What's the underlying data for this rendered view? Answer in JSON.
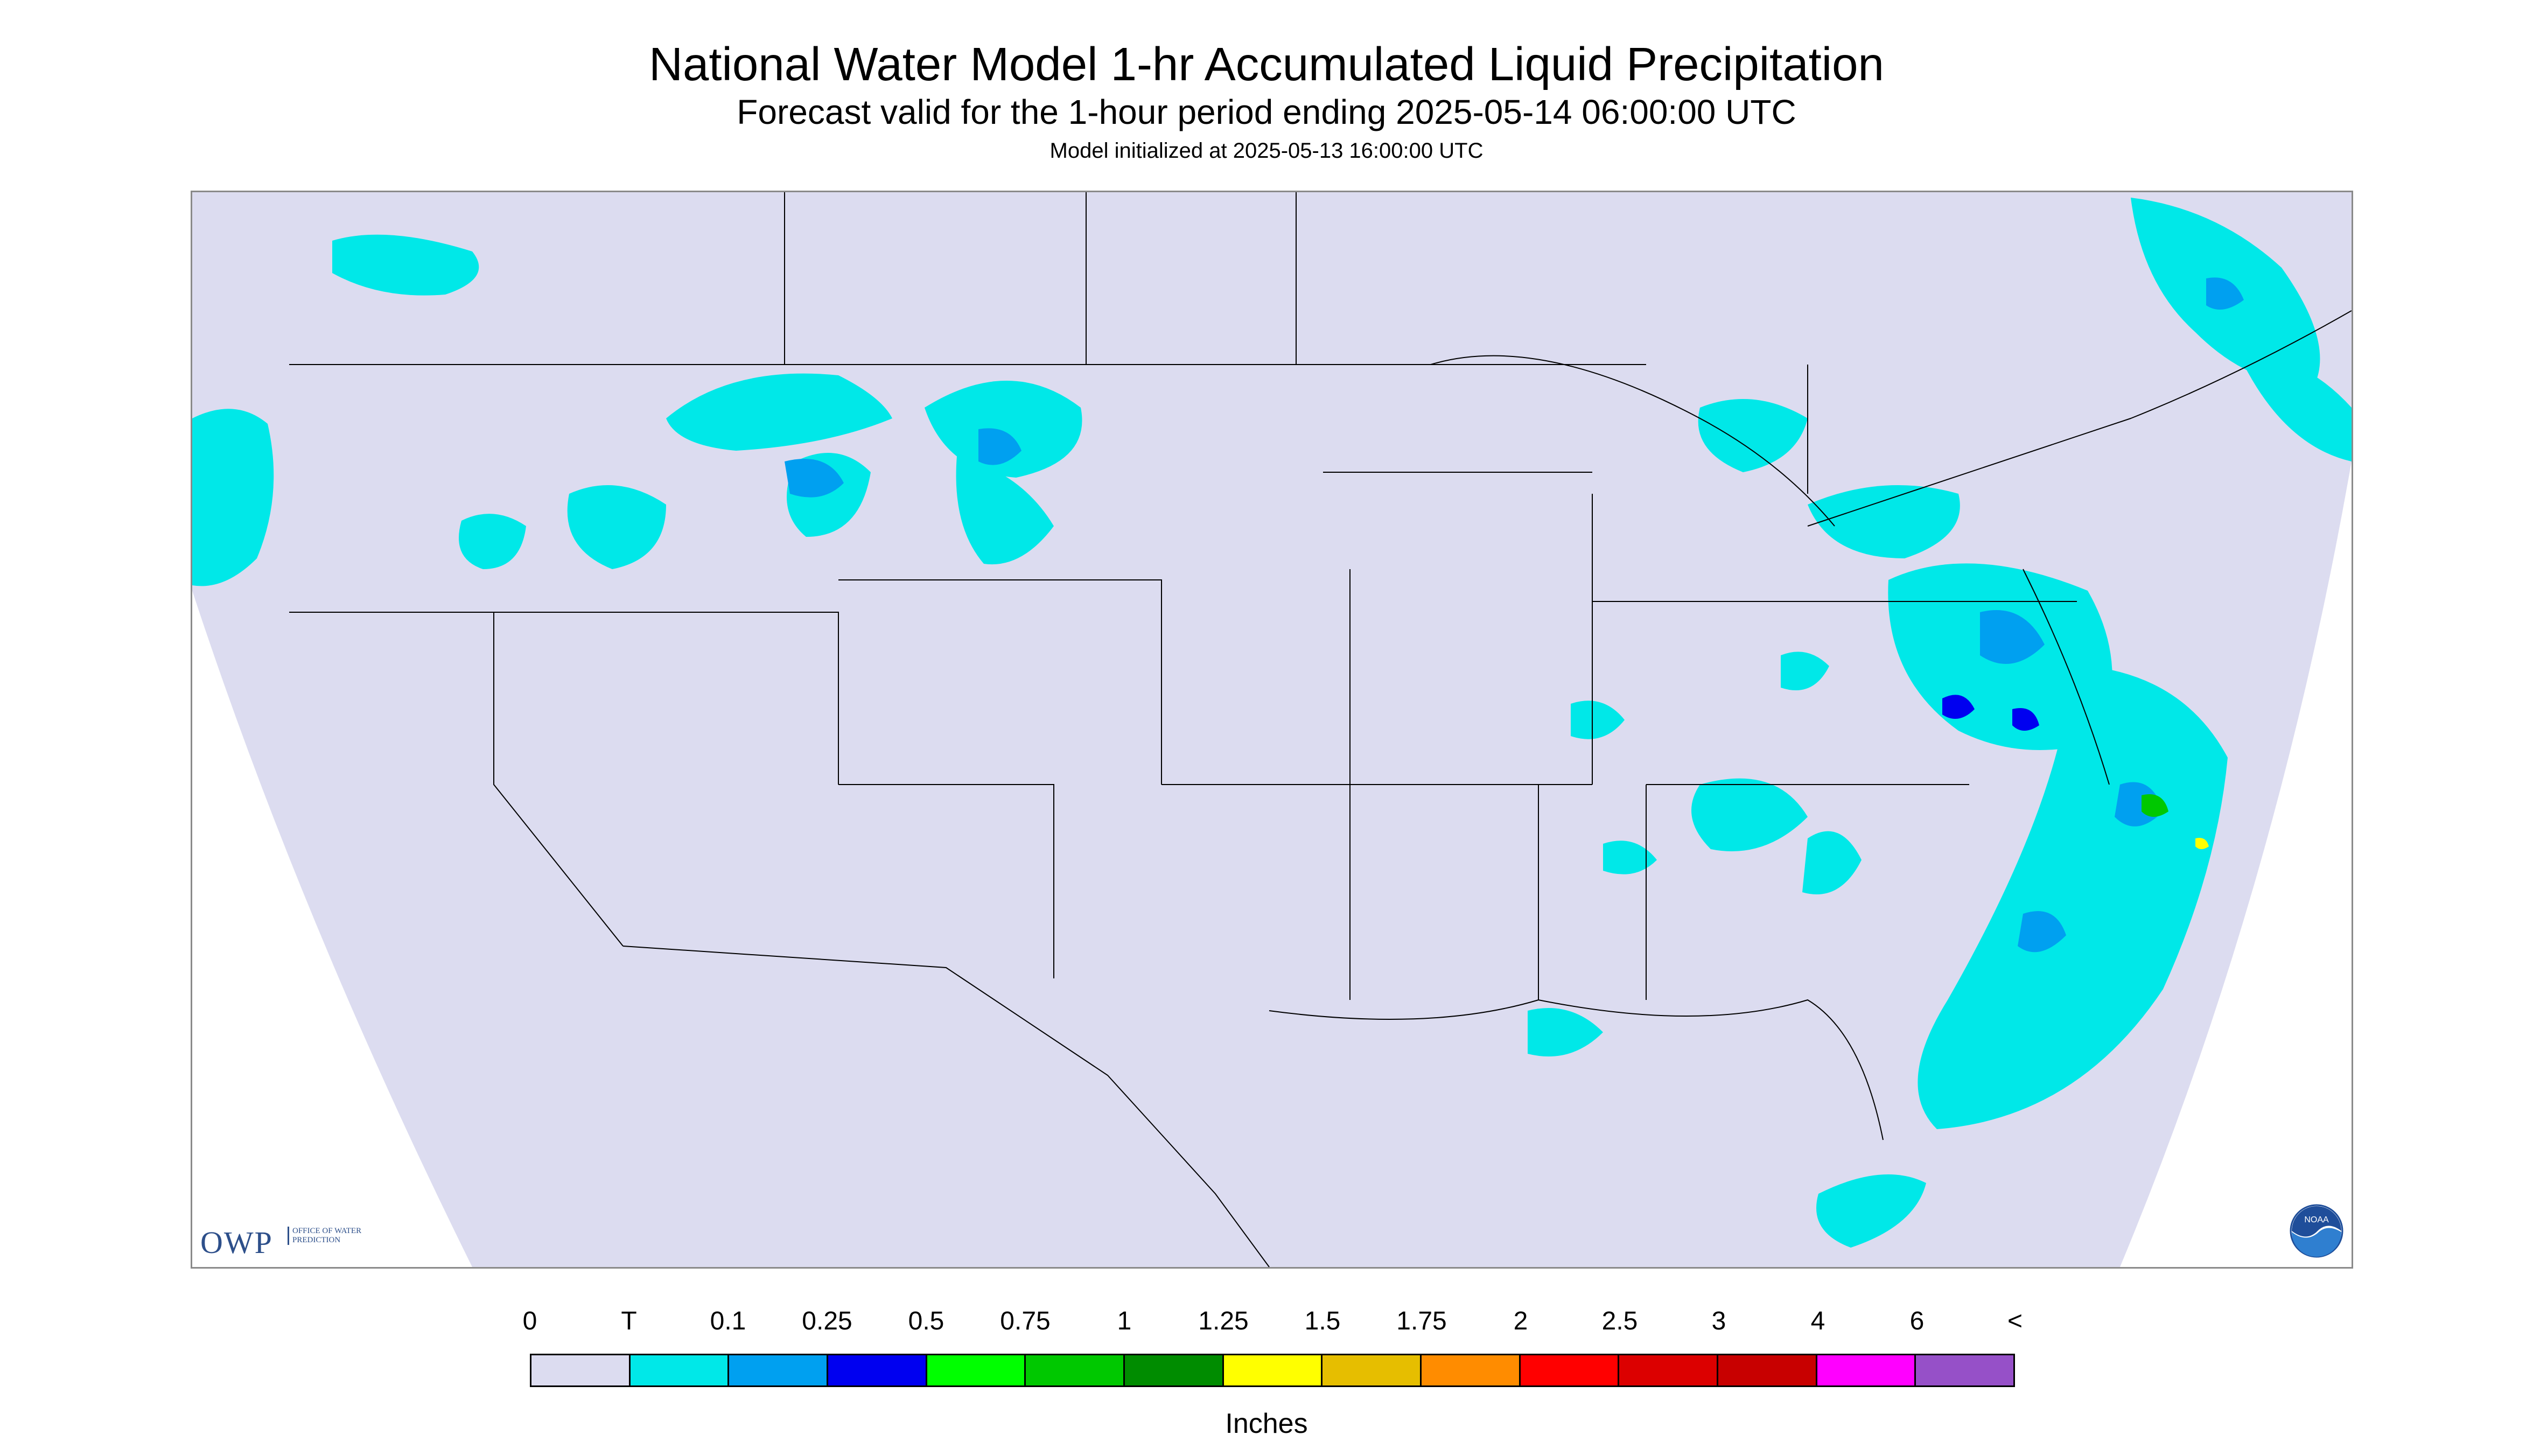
{
  "header": {
    "title": "National Water Model 1-hr Accumulated Liquid Precipitation",
    "subtitle": "Forecast valid for the 1-hour period ending 2025-05-14 06:00:00 UTC",
    "initialized": "Model initialized at 2025-05-13 16:00:00 UTC"
  },
  "map": {
    "region": "Continental United States",
    "projection_fill_color": "#dcdcf0",
    "outside_color": "#ffffff",
    "border_color": "#000000"
  },
  "logos": {
    "owp_text": "OWP",
    "owp_subtext": "OFFICE OF WATER PREDICTION",
    "noaa_text": "NOAA"
  },
  "legend": {
    "units_label": "Inches",
    "tick_labels": [
      "0",
      "T",
      "0.1",
      "0.25",
      "0.5",
      "0.75",
      "1",
      "1.25",
      "1.5",
      "1.75",
      "2",
      "2.5",
      "3",
      "4",
      "6",
      "<"
    ],
    "colors": [
      "#dcdcf0",
      "#00e8e8",
      "#00a0f0",
      "#0000f0",
      "#00ff00",
      "#00c800",
      "#008c00",
      "#ffff00",
      "#e6be00",
      "#ff8c00",
      "#ff0000",
      "#dc0000",
      "#c80000",
      "#ff00ff",
      "#9650c8"
    ]
  }
}
